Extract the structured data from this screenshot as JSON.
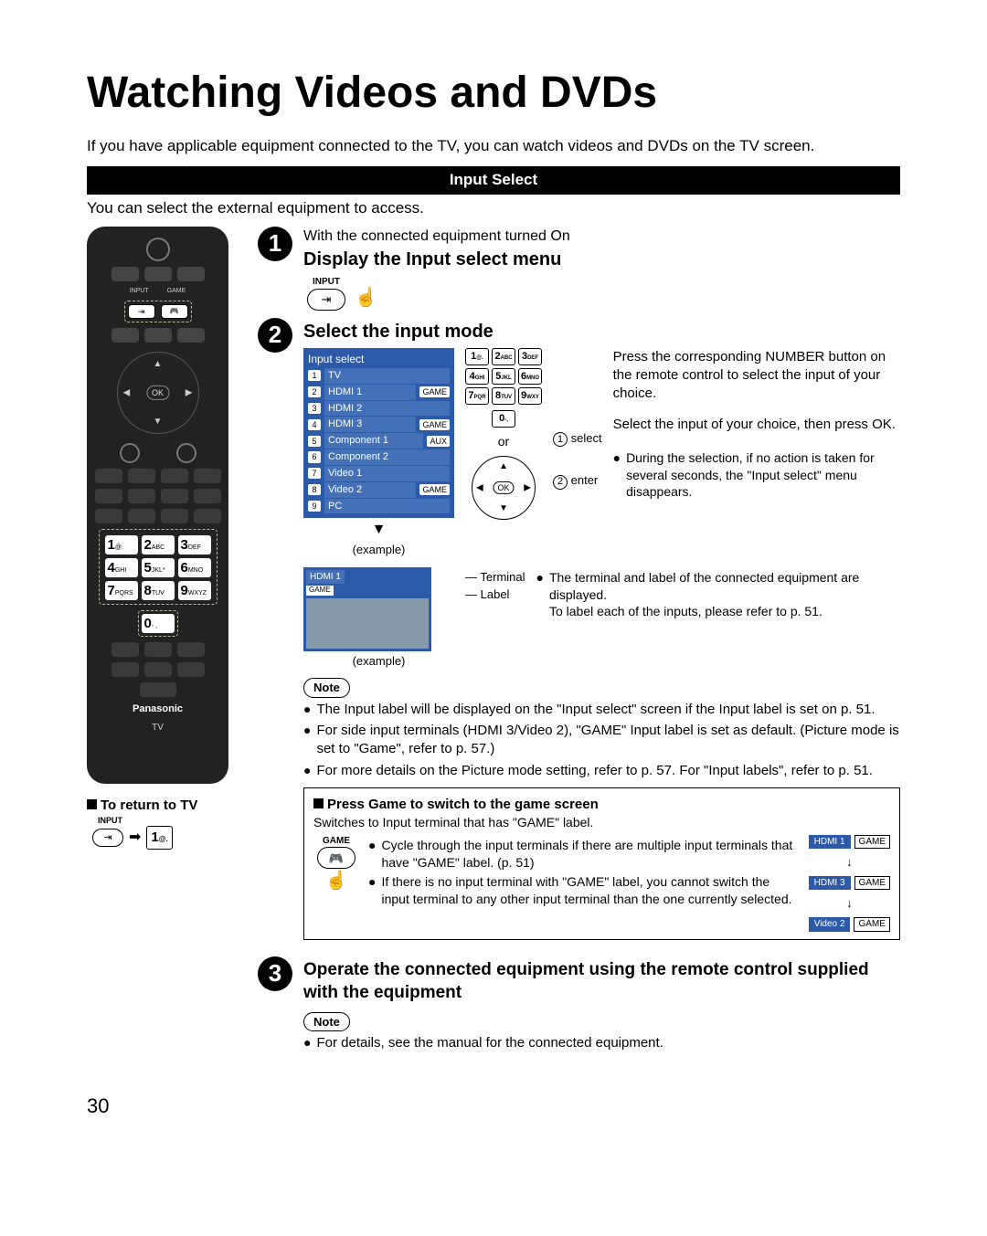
{
  "page": {
    "title": "Watching Videos and DVDs",
    "intro": "If you have applicable equipment connected to the TV, you can watch videos and DVDs on the TV screen.",
    "section_bar": "Input Select",
    "sub_intro": "You can select the external equipment to access.",
    "page_number": "30"
  },
  "remote": {
    "input_label": "INPUT",
    "game_label": "GAME",
    "ok": "OK",
    "brand": "Panasonic",
    "tv": "TV",
    "keys": [
      {
        "n": "1",
        "s": "@."
      },
      {
        "n": "2",
        "s": "ABC"
      },
      {
        "n": "3",
        "s": "DEF"
      },
      {
        "n": "4",
        "s": "GHI"
      },
      {
        "n": "5",
        "s": "JKL*"
      },
      {
        "n": "6",
        "s": "MNO"
      },
      {
        "n": "7",
        "s": "PQRS"
      },
      {
        "n": "8",
        "s": "TUV"
      },
      {
        "n": "9",
        "s": "WXYZ"
      },
      {
        "n": "0",
        "s": "- ,"
      }
    ]
  },
  "step1": {
    "pre": "With the connected equipment turned On",
    "title": "Display the Input select menu",
    "btn_label": "INPUT"
  },
  "step2": {
    "title": "Select the input mode",
    "menu_title": "Input select",
    "items": [
      {
        "n": "1",
        "name": "TV",
        "tag": ""
      },
      {
        "n": "2",
        "name": "HDMI 1",
        "tag": "GAME"
      },
      {
        "n": "3",
        "name": "HDMI 2",
        "tag": ""
      },
      {
        "n": "4",
        "name": "HDMI 3",
        "tag": "GAME"
      },
      {
        "n": "5",
        "name": "Component 1",
        "tag": "AUX"
      },
      {
        "n": "6",
        "name": "Component 2",
        "tag": ""
      },
      {
        "n": "7",
        "name": "Video 1",
        "tag": ""
      },
      {
        "n": "8",
        "name": "Video 2",
        "tag": "GAME"
      },
      {
        "n": "9",
        "name": "PC",
        "tag": ""
      }
    ],
    "example": "(example)",
    "or": "or",
    "select": "select",
    "enter": "enter",
    "right_p1": "Press the corresponding NUMBER button on the remote control to select the input of your choice.",
    "right_p2": "Select the input of your choice, then press OK.",
    "right_b1": "During the selection, if no action is taken for several seconds, the \"Input select\" menu disappears.",
    "terminal_word": "Terminal",
    "label_word": "Label",
    "terminal_name": "HDMI 1",
    "terminal_tag": "GAME",
    "right_b2a": "The terminal and label of the connected equipment are displayed.",
    "right_b2b": "To label each of the inputs, please refer to p. 51.",
    "note": "Note",
    "n1": "The Input label will be displayed on the \"Input select\" screen if the Input label is set on p. 51.",
    "n2": "For side input terminals (HDMI 3/Video 2), \"GAME\" Input label is set as default. (Picture mode is set to \"Game\", refer to p. 57.)",
    "n3": "For more details on the Picture mode setting, refer to p. 57. For \"Input labels\", refer to p. 51."
  },
  "game": {
    "title": "Press Game to switch to the game screen",
    "sub": "Switches to Input terminal that has \"GAME\" label.",
    "btn_label": "GAME",
    "b1": "Cycle through the input terminals if there are multiple input terminals that have \"GAME\" label. (p. 51)",
    "b2": "If there is no input terminal with \"GAME\" label, you cannot switch the input terminal to any other input terminal than the one currently selected.",
    "cycle": [
      {
        "name": "HDMI 1",
        "tag": "GAME"
      },
      {
        "name": "HDMI 3",
        "tag": "GAME"
      },
      {
        "name": "Video 2",
        "tag": "GAME"
      }
    ]
  },
  "step3": {
    "title": "Operate the connected equipment using the remote control supplied with the equipment",
    "note": "Note",
    "n1": "For details, see the manual for the connected equipment."
  },
  "return": {
    "title": "To return to TV",
    "input": "INPUT",
    "key1_n": "1",
    "key1_s": "@."
  },
  "colors": {
    "menu_bg": "#2d5aa8",
    "menu_row": "#4470b8"
  }
}
